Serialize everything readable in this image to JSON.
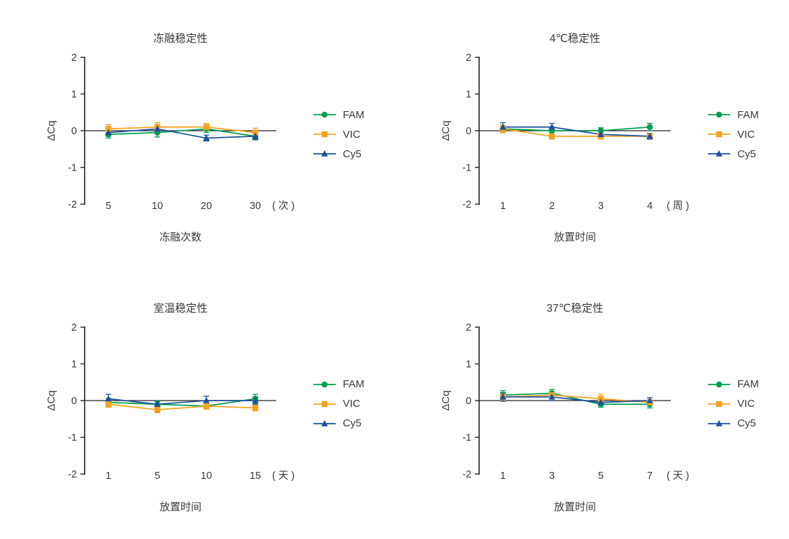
{
  "figure": {
    "background": "#ffffff",
    "axis_color": "#231f20",
    "text_color": "#3a3a3a"
  },
  "chart_data": [
    {
      "type": "line",
      "title": "冻融稳定性",
      "xlabel": "冻融次数",
      "ylabel": "ΔCq",
      "ylim": [
        -2,
        2
      ],
      "yticks": [
        "2",
        "1",
        "0",
        "-1",
        "-2"
      ],
      "grid": false,
      "legend_position": "right",
      "categories": [
        "5",
        "10",
        "20",
        "30"
      ],
      "x_unit": "( 次 )",
      "series": [
        {
          "name": "FAM",
          "marker": "circle",
          "color": "#009e4f",
          "values": [
            -0.1,
            -0.05,
            0.05,
            -0.15
          ],
          "errors": [
            0.1,
            0.12,
            0.1,
            0.1
          ]
        },
        {
          "name": "VIC",
          "marker": "square",
          "color": "#f6a21d",
          "values": [
            0.05,
            0.1,
            0.1,
            -0.05
          ],
          "errors": [
            0.12,
            0.12,
            0.1,
            0.12
          ]
        },
        {
          "name": "Cy5",
          "marker": "triangle",
          "color": "#1c4f9e",
          "values": [
            -0.05,
            0.05,
            -0.2,
            -0.15
          ],
          "errors": [
            0.1,
            0.12,
            0.08,
            0.08
          ]
        }
      ]
    },
    {
      "type": "line",
      "title": "4℃稳定性",
      "xlabel": "放置时间",
      "ylabel": "ΔCq",
      "ylim": [
        -2,
        2
      ],
      "yticks": [
        "2",
        "1",
        "0",
        "-1",
        "-2"
      ],
      "grid": false,
      "legend_position": "right",
      "categories": [
        "1",
        "2",
        "3",
        "4"
      ],
      "x_unit": "( 周 )",
      "series": [
        {
          "name": "FAM",
          "marker": "circle",
          "color": "#009e4f",
          "values": [
            0.05,
            0.0,
            0.0,
            0.1
          ],
          "errors": [
            0.1,
            0.1,
            0.08,
            0.1
          ]
        },
        {
          "name": "VIC",
          "marker": "square",
          "color": "#f6a21d",
          "values": [
            0.05,
            -0.15,
            -0.15,
            -0.15
          ],
          "errors": [
            0.1,
            0.08,
            0.08,
            0.08
          ]
        },
        {
          "name": "Cy5",
          "marker": "triangle",
          "color": "#1c4f9e",
          "values": [
            0.1,
            0.1,
            -0.1,
            -0.15
          ],
          "errors": [
            0.12,
            0.1,
            0.08,
            0.08
          ]
        }
      ]
    },
    {
      "type": "line",
      "title": "室温稳定性",
      "xlabel": "放置时间",
      "ylabel": "ΔCq",
      "ylim": [
        -2,
        2
      ],
      "yticks": [
        "2",
        "1",
        "0",
        "-1",
        "-2"
      ],
      "grid": false,
      "legend_position": "right",
      "categories": [
        "1",
        "5",
        "10",
        "15"
      ],
      "x_unit": "( 天 )",
      "series": [
        {
          "name": "FAM",
          "marker": "circle",
          "color": "#009e4f",
          "values": [
            -0.05,
            -0.1,
            -0.15,
            0.05
          ],
          "errors": [
            0.1,
            0.1,
            0.08,
            0.12
          ]
        },
        {
          "name": "VIC",
          "marker": "square",
          "color": "#f6a21d",
          "values": [
            -0.1,
            -0.25,
            -0.15,
            -0.2
          ],
          "errors": [
            0.08,
            0.08,
            0.08,
            0.08
          ]
        },
        {
          "name": "Cy5",
          "marker": "triangle",
          "color": "#1c4f9e",
          "values": [
            0.05,
            -0.1,
            0.0,
            0.0
          ],
          "errors": [
            0.12,
            0.08,
            0.12,
            0.1
          ]
        }
      ]
    },
    {
      "type": "line",
      "title": "37℃稳定性",
      "xlabel": "放置时间",
      "ylabel": "ΔCq",
      "ylim": [
        -2,
        2
      ],
      "yticks": [
        "2",
        "1",
        "0",
        "-1",
        "-2"
      ],
      "grid": false,
      "legend_position": "right",
      "categories": [
        "1",
        "3",
        "5",
        "7"
      ],
      "x_unit": "( 天 )",
      "series": [
        {
          "name": "FAM",
          "marker": "circle",
          "color": "#009e4f",
          "values": [
            0.15,
            0.2,
            -0.1,
            -0.1
          ],
          "errors": [
            0.12,
            0.1,
            0.08,
            0.1
          ]
        },
        {
          "name": "VIC",
          "marker": "square",
          "color": "#f6a21d",
          "values": [
            0.1,
            0.15,
            0.05,
            -0.05
          ],
          "errors": [
            0.1,
            0.1,
            0.12,
            0.08
          ]
        },
        {
          "name": "Cy5",
          "marker": "triangle",
          "color": "#1c4f9e",
          "values": [
            0.1,
            0.1,
            -0.05,
            0.0
          ],
          "errors": [
            0.12,
            0.1,
            0.08,
            0.08
          ]
        }
      ]
    }
  ]
}
